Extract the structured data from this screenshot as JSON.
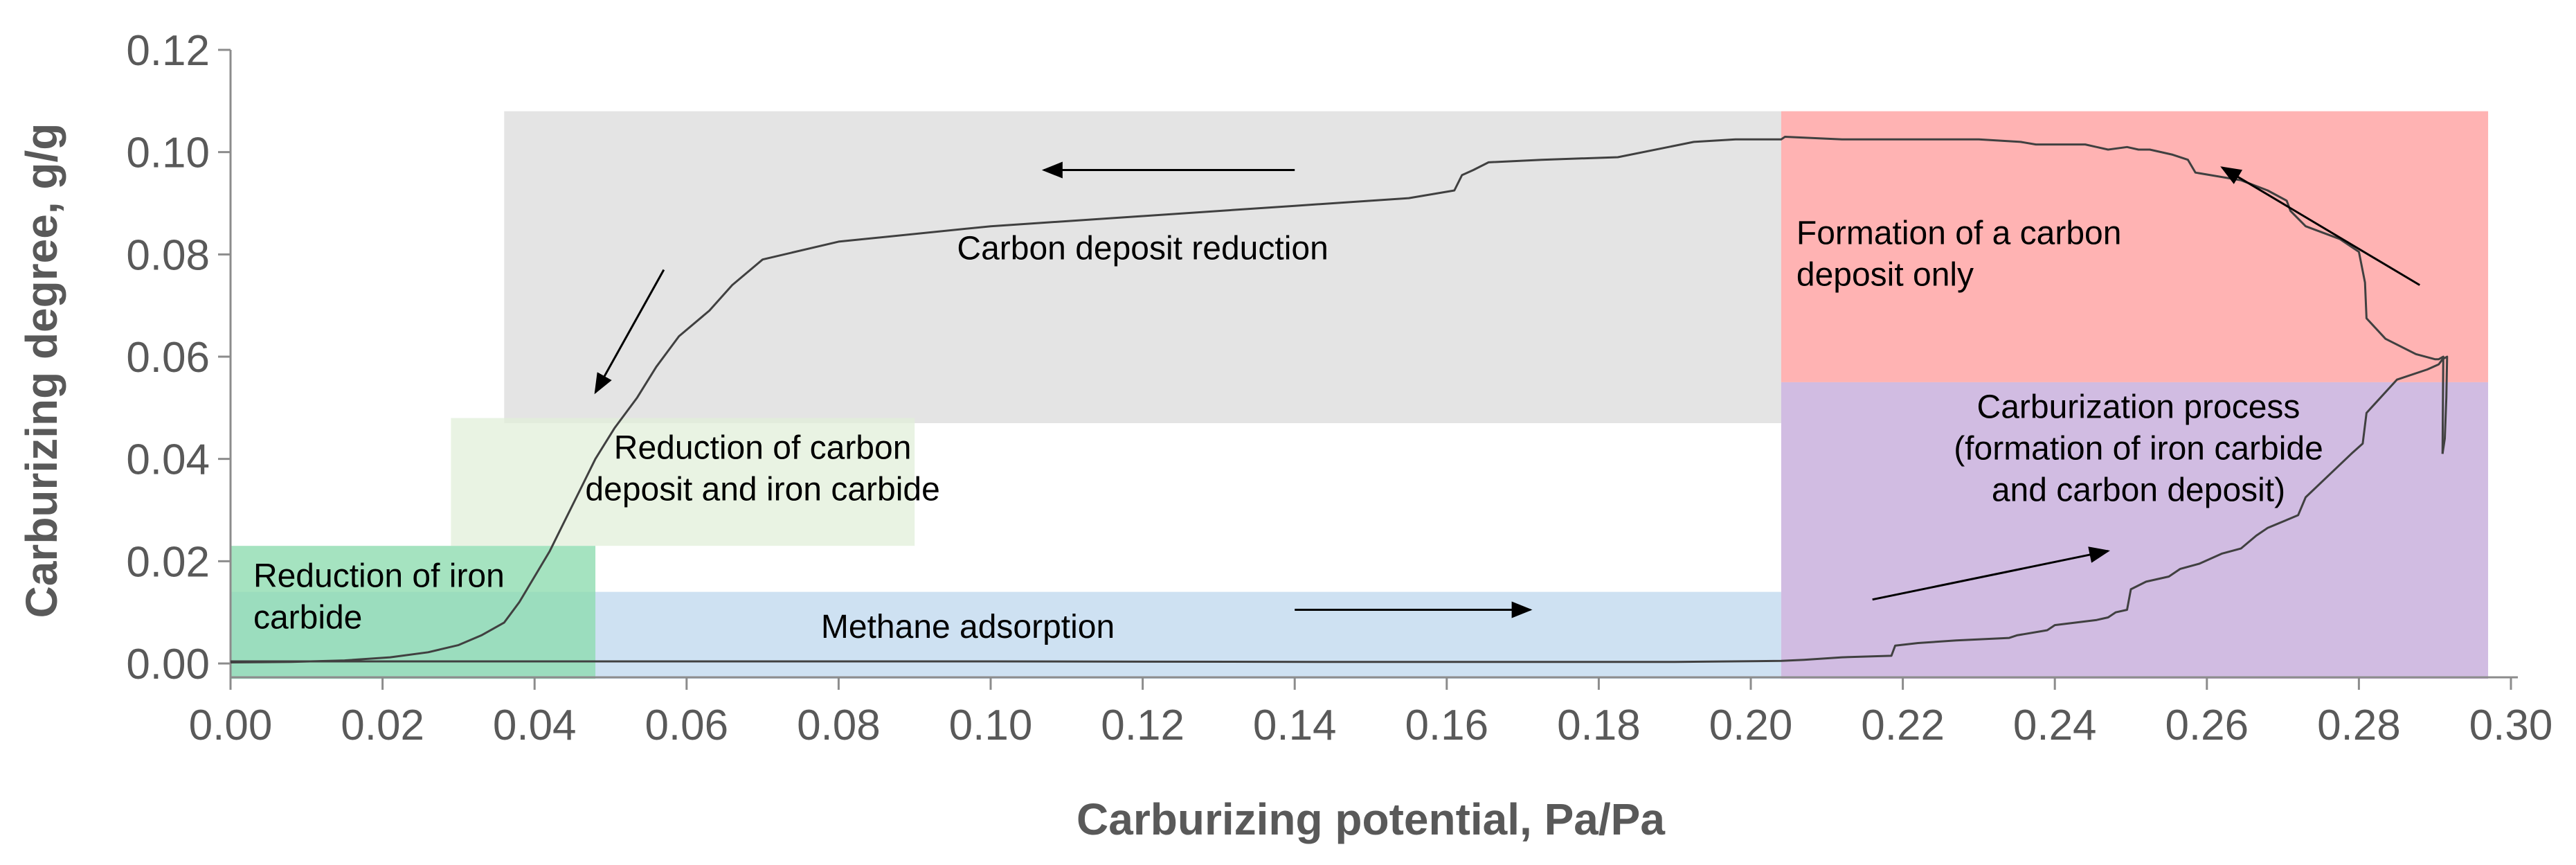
{
  "chart_data": {
    "type": "line",
    "title": "",
    "xlabel": "Carburizing potential, Pa/Pa",
    "ylabel": "Carburizing degree, g/g",
    "xlim": [
      0,
      0.3
    ],
    "ylim": [
      0,
      0.12
    ],
    "x_ticks": [
      "0.00",
      "0.02",
      "0.04",
      "0.06",
      "0.08",
      "0.10",
      "0.12",
      "0.14",
      "0.16",
      "0.18",
      "0.20",
      "0.22",
      "0.24",
      "0.26",
      "0.28",
      "0.30"
    ],
    "y_ticks": [
      "0.00",
      "0.02",
      "0.04",
      "0.06",
      "0.08",
      "0.10",
      "0.12"
    ],
    "grid": false,
    "legend": "none",
    "colors": {
      "axis": "#8c8c8c",
      "tick_text": "#595959",
      "curve": "#404040",
      "arrow": "#000000",
      "gray_region": "#d9d9d9",
      "red_region": "#ff9a9a",
      "purple_region": "#c2a5d8",
      "blue_region": "#bdd7ee",
      "green_region": "#8fdcb0",
      "light_green_region": "#e2efda"
    },
    "regions": [
      {
        "name": "carbon-deposit-reduction",
        "x": [
          0.036,
          0.204
        ],
        "y": [
          0.047,
          0.108
        ],
        "color": "#d9d9d9",
        "opacity": 0.7,
        "label": [
          "Carbon deposit reduction"
        ],
        "label_at": [
          0.12,
          0.079
        ],
        "anchor": "middle"
      },
      {
        "name": "formation-of-carbon-deposit",
        "x": [
          0.204,
          0.297
        ],
        "y": [
          0.055,
          0.108
        ],
        "color": "#ff9a9a",
        "opacity": 0.75,
        "label": [
          "Formation of a carbon",
          "deposit only"
        ],
        "label_at": [
          0.206,
          0.082
        ],
        "anchor": "start"
      },
      {
        "name": "carburization-process",
        "x": [
          0.204,
          0.297
        ],
        "y": [
          -0.003,
          0.055
        ],
        "color": "#c2a5d8",
        "opacity": 0.75,
        "label": [
          "Carburization process",
          "(formation of iron carbide",
          "and carbon deposit)"
        ],
        "label_at": [
          0.251,
          0.048
        ],
        "anchor": "middle"
      },
      {
        "name": "methane-adsorption",
        "x": [
          0.0,
          0.204
        ],
        "y": [
          -0.003,
          0.014
        ],
        "color": "#bdd7ee",
        "opacity": 0.75,
        "label": [
          "Methane adsorption"
        ],
        "label_at": [
          0.097,
          0.005
        ],
        "anchor": "middle"
      },
      {
        "name": "reduction-of-carbon-deposit-and-iron-carbide",
        "x": [
          0.029,
          0.09
        ],
        "y": [
          0.023,
          0.048
        ],
        "color": "#e2efda",
        "opacity": 0.75,
        "label": [
          "Reduction of carbon",
          "deposit and iron carbide"
        ],
        "label_at": [
          0.07,
          0.04
        ],
        "anchor": "middle"
      },
      {
        "name": "reduction-of-iron-carbide",
        "x": [
          0.0,
          0.048
        ],
        "y": [
          -0.003,
          0.023
        ],
        "color": "#8fdcb0",
        "opacity": 0.8,
        "label": [
          "Reduction of iron",
          "carbide"
        ],
        "label_at": [
          0.003,
          0.015
        ],
        "anchor": "start"
      }
    ],
    "arrows": [
      {
        "from": [
          0.14,
          0.0965
        ],
        "to": [
          0.107,
          0.0965
        ]
      },
      {
        "from": [
          0.057,
          0.077
        ],
        "to": [
          0.048,
          0.053
        ]
      },
      {
        "from": [
          0.14,
          0.0105
        ],
        "to": [
          0.171,
          0.0105
        ]
      },
      {
        "from": [
          0.216,
          0.0125
        ],
        "to": [
          0.247,
          0.022
        ]
      },
      {
        "from": [
          0.288,
          0.074
        ],
        "to": [
          0.262,
          0.097
        ]
      }
    ],
    "series": [
      {
        "curve": "main",
        "x": [
          0.291,
          0.2913,
          0.2915,
          0.2916,
          0.291,
          0.2905,
          0.289,
          0.285,
          0.281,
          0.2805,
          0.279,
          0.273,
          0.272,
          0.268,
          0.2665,
          0.2645,
          0.262,
          0.259,
          0.2565,
          0.255,
          0.252,
          0.25,
          0.2495,
          0.248,
          0.247,
          0.2455,
          0.24,
          0.239,
          0.235,
          0.234,
          0.227,
          0.222,
          0.219,
          0.2185,
          0.212,
          0.207,
          0.204,
          0.19,
          0.17,
          0.15,
          0.1,
          0.05,
          0.0
        ],
        "y": [
          0.041,
          0.044,
          0.052,
          0.06,
          0.0595,
          0.0585,
          0.0575,
          0.0555,
          0.049,
          0.043,
          0.041,
          0.0325,
          0.029,
          0.0265,
          0.025,
          0.0225,
          0.0215,
          0.0195,
          0.0185,
          0.017,
          0.016,
          0.0145,
          0.0105,
          0.01,
          0.009,
          0.0085,
          0.0075,
          0.0065,
          0.0055,
          0.005,
          0.0045,
          0.004,
          0.0035,
          0.0015,
          0.0012,
          0.0007,
          0.0005,
          0.0003,
          0.0003,
          0.0003,
          0.0004,
          0.0004,
          0.0004
        ]
      },
      {
        "curve": "upper",
        "x": [
          0.291,
          0.2911,
          0.2905,
          0.29,
          0.2875,
          0.2835,
          0.281,
          0.2808,
          0.28,
          0.2775,
          0.273,
          0.271,
          0.2705,
          0.268,
          0.2645,
          0.2585,
          0.2575,
          0.2555,
          0.2525,
          0.251,
          0.2495,
          0.247,
          0.2455,
          0.244,
          0.24,
          0.2375,
          0.2355,
          0.23,
          0.2245,
          0.212,
          0.2045,
          0.204,
          0.198,
          0.1925,
          0.1825,
          0.1725,
          0.1655,
          0.1635,
          0.162,
          0.161,
          0.155,
          0.14,
          0.12,
          0.1,
          0.08,
          0.07,
          0.066,
          0.063,
          0.059,
          0.056,
          0.0535,
          0.0505,
          0.048,
          0.046,
          0.044,
          0.042,
          0.04,
          0.038,
          0.036,
          0.033,
          0.03,
          0.026,
          0.021,
          0.015,
          0.008,
          0.0
        ],
        "y": [
          0.041,
          0.06,
          0.0595,
          0.0595,
          0.0605,
          0.0635,
          0.0675,
          0.0745,
          0.0805,
          0.083,
          0.0855,
          0.0885,
          0.0905,
          0.0925,
          0.0945,
          0.096,
          0.0985,
          0.0995,
          0.1005,
          0.1005,
          0.101,
          0.1005,
          0.101,
          0.1015,
          0.1015,
          0.1015,
          0.102,
          0.1025,
          0.1025,
          0.1025,
          0.103,
          0.1025,
          0.1025,
          0.102,
          0.099,
          0.0985,
          0.098,
          0.0965,
          0.0955,
          0.0925,
          0.091,
          0.0895,
          0.0875,
          0.0855,
          0.0825,
          0.079,
          0.074,
          0.069,
          0.064,
          0.058,
          0.052,
          0.046,
          0.04,
          0.034,
          0.028,
          0.022,
          0.017,
          0.012,
          0.008,
          0.0055,
          0.0036,
          0.0022,
          0.0012,
          0.0006,
          0.0003,
          0.0002
        ]
      }
    ]
  }
}
